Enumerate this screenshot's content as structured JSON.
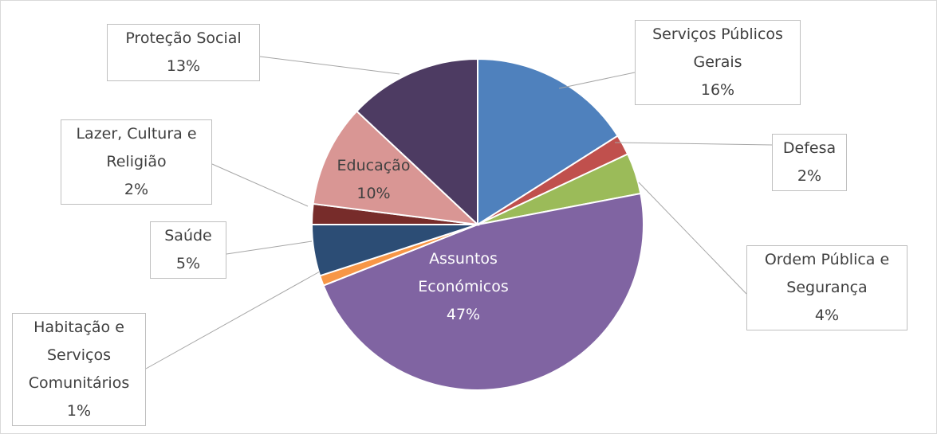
{
  "chart_data": {
    "type": "pie",
    "categories": [
      "Serviços Públicos Gerais",
      "Defesa",
      "Ordem Pública e Segurança",
      "Assuntos Económicos",
      "Habitação e Serviços Comunitários",
      "Saúde",
      "Lazer, Cultura e Religião",
      "Educação",
      "Proteção Social"
    ],
    "values": [
      16,
      2,
      4,
      47,
      1,
      5,
      2,
      10,
      13
    ],
    "value_labels": [
      "16%",
      "2%",
      "4%",
      "47%",
      "1%",
      "5%",
      "2%",
      "10%",
      "13%"
    ],
    "colors": [
      "#4f81bd",
      "#c0504d",
      "#9bbb59",
      "#8064a2",
      "#f79646",
      "#2c4d75",
      "#772c2a",
      "#d99694",
      "#4d3b62"
    ]
  }
}
